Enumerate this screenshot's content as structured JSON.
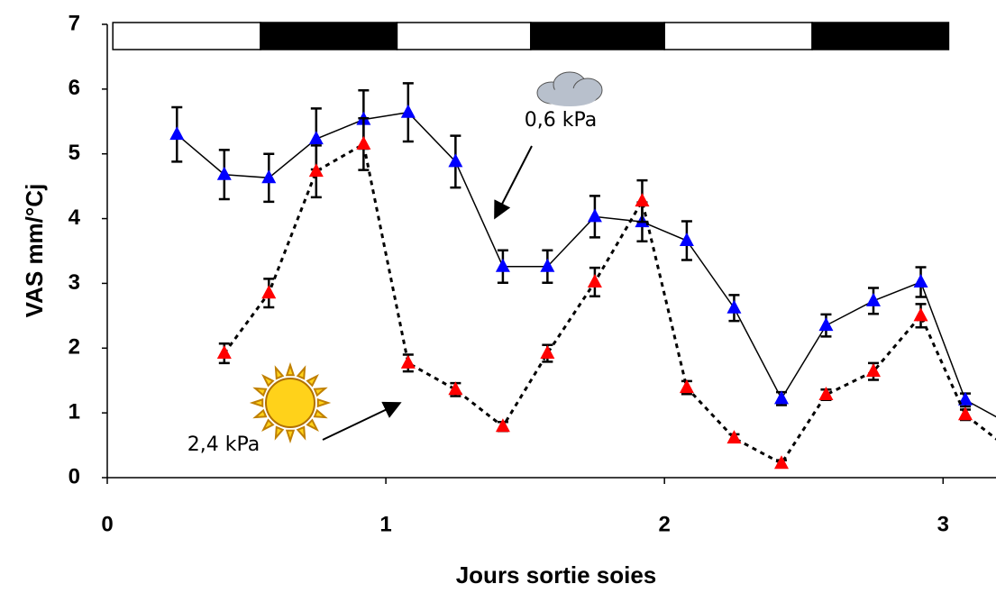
{
  "chart_data": {
    "type": "line",
    "x_label": "Jours sortie soies",
    "y_label": "VAS mm/°Cj",
    "xlim": [
      0,
      3.19
    ],
    "ylim": [
      0,
      7
    ],
    "xticks": [
      0,
      1,
      2,
      3
    ],
    "yticks": [
      0,
      1,
      2,
      3,
      4,
      5,
      6,
      7
    ],
    "grid": false,
    "x": [
      0.25,
      0.42,
      0.58,
      0.75,
      0.92,
      1.08,
      1.25,
      1.42,
      1.58,
      1.75,
      1.92,
      2.08,
      2.25,
      2.42,
      2.58,
      2.75,
      2.92,
      3.08,
      3.25
    ],
    "series": [
      {
        "name": "0,6 kPa",
        "color": "#0000ff",
        "dash": false,
        "values": [
          5.3,
          4.68,
          4.63,
          5.23,
          5.53,
          5.64,
          4.88,
          3.26,
          3.26,
          4.03,
          3.95,
          3.66,
          2.62,
          1.22,
          2.35,
          2.73,
          3.02,
          1.2,
          0.8
        ],
        "errors": [
          0.42,
          0.38,
          0.37,
          0.47,
          0.45,
          0.45,
          0.4,
          0.25,
          0.25,
          0.32,
          0.3,
          0.3,
          0.2,
          0.1,
          0.17,
          0.2,
          0.23,
          0.1,
          null
        ]
      },
      {
        "name": "2,4 kPa",
        "color": "#ff0000",
        "dash": true,
        "values": [
          null,
          1.92,
          2.85,
          4.73,
          5.15,
          1.77,
          1.36,
          0.79,
          1.92,
          3.02,
          4.27,
          1.39,
          0.61,
          0.22,
          1.28,
          1.64,
          2.5,
          0.97,
          0.4
        ],
        "errors": [
          null,
          0.15,
          0.22,
          0.4,
          0.4,
          0.13,
          0.1,
          0.07,
          0.13,
          0.22,
          0.32,
          0.1,
          0.06,
          0.05,
          0.08,
          0.13,
          0.18,
          0.08,
          null
        ]
      }
    ],
    "photoperiod": [
      {
        "start": 0.02,
        "end": 0.55,
        "color": "#ffffff"
      },
      {
        "start": 0.55,
        "end": 1.04,
        "color": "#000000"
      },
      {
        "start": 1.04,
        "end": 1.52,
        "color": "#ffffff"
      },
      {
        "start": 1.52,
        "end": 2.0,
        "color": "#000000"
      },
      {
        "start": 2.0,
        "end": 2.53,
        "color": "#ffffff"
      },
      {
        "start": 2.53,
        "end": 3.02,
        "color": "#000000"
      }
    ]
  }
}
